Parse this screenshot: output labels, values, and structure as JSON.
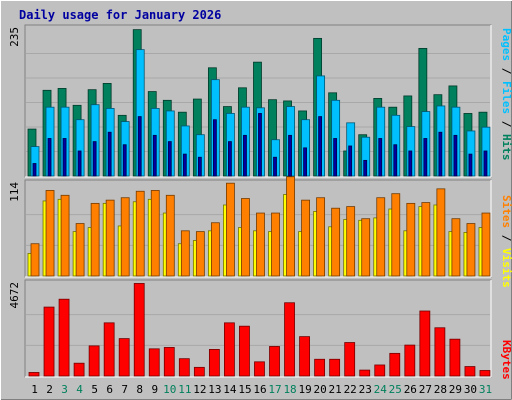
{
  "colors": {
    "background": "#c0c0c0",
    "panel": "#c0c0c0",
    "hits": "#00805c",
    "files": "#00c0ff",
    "pages": "#0000a0",
    "visits": "#ffff00",
    "sites": "#ff8000",
    "kbytes": "#ff0000",
    "title": "#0000a0",
    "weekend": "#00805c"
  },
  "chart_data": {
    "type": "bar",
    "title": "Daily usage for January 2026",
    "days": [
      "1",
      "2",
      "3",
      "4",
      "5",
      "6",
      "7",
      "8",
      "9",
      "10",
      "11",
      "12",
      "13",
      "14",
      "15",
      "16",
      "17",
      "18",
      "19",
      "20",
      "21",
      "22",
      "23",
      "24",
      "25",
      "26",
      "27",
      "28",
      "29",
      "30",
      "31"
    ],
    "weekend_days": [
      "3",
      "4",
      "10",
      "11",
      "17",
      "18",
      "24",
      "25",
      "31"
    ],
    "panels": [
      {
        "name": "hits-files-pages",
        "ylabel_max": "235",
        "ymax": 235,
        "axis_labels": [
          {
            "text": "Pages",
            "color": "#00c0ff"
          },
          {
            "text": " / ",
            "color": "#000000"
          },
          {
            "text": "Files",
            "color": "#00c0ff"
          },
          {
            "text": " / ",
            "color": "#000000"
          },
          {
            "text": "Hits",
            "color": "#00805c"
          }
        ],
        "series": [
          {
            "name": "Hits",
            "color": "#00805c",
            "values": [
              75,
              137,
              140,
              113,
              138,
              148,
              97,
              234,
              135,
              121,
              102,
              123,
              173,
              111,
              141,
              182,
              122,
              120,
              104,
              220,
              133,
              40,
              66,
              124,
              110,
              128,
              204,
              130,
              144,
              100,
              102
            ]
          },
          {
            "name": "Files",
            "color": "#00c0ff",
            "values": [
              47,
              110,
              110,
              90,
              114,
              108,
              87,
              202,
              108,
              104,
              80,
              66,
              154,
              100,
              110,
              109,
              58,
              111,
              90,
              160,
              121,
              85,
              62,
              110,
              97,
              79,
              103,
              112,
              110,
              72,
              78
            ]
          },
          {
            "name": "Pages",
            "color": "#0000a0",
            "values": [
              20,
              60,
              60,
              40,
              55,
              70,
              50,
              95,
              65,
              55,
              35,
              30,
              90,
              55,
              65,
              100,
              30,
              65,
              45,
              95,
              60,
              48,
              25,
              60,
              50,
              40,
              60,
              70,
              65,
              35,
              40
            ]
          }
        ]
      },
      {
        "name": "visits-sites",
        "ylabel_max": "114",
        "ymax": 114,
        "axis_labels": [
          {
            "text": "Sites",
            "color": "#ff8000"
          },
          {
            "text": " / ",
            "color": "#000000"
          },
          {
            "text": "Visits",
            "color": "#ffff00"
          }
        ],
        "series": [
          {
            "name": "Visits",
            "color": "#ffff00",
            "values": [
              28,
              93,
              95,
              55,
              60,
              90,
              62,
              92,
              95,
              78,
              40,
              44,
              56,
              88,
              60,
              56,
              55,
              101,
              55,
              80,
              61,
              70,
              69,
              72,
              83,
              56,
              86,
              88,
              55,
              54,
              60
            ]
          },
          {
            "name": "Sites",
            "color": "#ff8000",
            "values": [
              40,
              106,
              100,
              65,
              90,
              94,
              97,
              105,
              106,
              100,
              56,
              55,
              66,
              115,
              96,
              78,
              78,
              123,
              94,
              97,
              84,
              86,
              71,
              97,
              102,
              90,
              91,
              108,
              71,
              65,
              78
            ]
          }
        ]
      },
      {
        "name": "kbytes",
        "ylabel_max": "4672",
        "ymax": 4672,
        "axis_labels": [
          {
            "text": "KBytes",
            "color": "#ff0000"
          }
        ],
        "series": [
          {
            "name": "KBytes",
            "color": "#ff0000",
            "values": [
              180,
              3500,
              3900,
              650,
              1530,
              2700,
              1900,
              4700,
              1380,
              1450,
              880,
              440,
              1350,
              2700,
              2530,
              720,
              1500,
              3720,
              2000,
              850,
              850,
              1700,
              300,
              560,
              1150,
              1570,
              3300,
              2450,
              1870,
              480,
              280
            ]
          }
        ]
      }
    ]
  }
}
